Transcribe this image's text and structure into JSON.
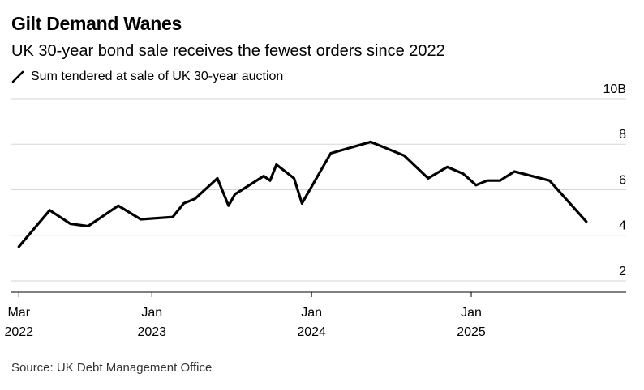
{
  "chart_data": {
    "type": "line",
    "title": "Gilt Demand Wanes",
    "subtitle": "UK 30-year bond sale receives the fewest orders since 2022",
    "legend": [
      {
        "label": "Sum tendered at sale of UK 30-year auction",
        "color": "#000000"
      }
    ],
    "source": "Source: UK Debt Management Office",
    "ylim": [
      1.5,
      10
    ],
    "y_ticks": [
      {
        "value": 10,
        "label": "10B"
      },
      {
        "value": 8,
        "label": "8"
      },
      {
        "value": 6,
        "label": "6"
      },
      {
        "value": 4,
        "label": "4"
      },
      {
        "value": 2,
        "label": "2"
      }
    ],
    "xlim": [
      2022.12,
      2025.97
    ],
    "x_ticks": [
      {
        "value": 2022.167,
        "line1": "Mar",
        "line2": "2022"
      },
      {
        "value": 2023.0,
        "line1": "Jan",
        "line2": "2023"
      },
      {
        "value": 2024.0,
        "line1": "Jan",
        "line2": "2024"
      },
      {
        "value": 2025.0,
        "line1": "Jan",
        "line2": "2025"
      }
    ],
    "series": [
      {
        "name": "Sum tendered at sale of UK 30-year auction",
        "color": "#000000",
        "x": [
          2022.167,
          2022.36,
          2022.49,
          2022.6,
          2022.79,
          2022.93,
          2023.13,
          2023.2,
          2023.27,
          2023.41,
          2023.48,
          2023.52,
          2023.7,
          2023.74,
          2023.78,
          2023.89,
          2023.94,
          2024.12,
          2024.37,
          2024.58,
          2024.73,
          2024.85,
          2024.95,
          2025.03,
          2025.1,
          2025.18,
          2025.27,
          2025.49,
          2025.72
        ],
        "values": [
          3.5,
          5.1,
          4.5,
          4.4,
          5.3,
          4.7,
          4.8,
          5.4,
          5.6,
          6.5,
          5.3,
          5.8,
          6.6,
          6.4,
          7.1,
          6.5,
          5.4,
          7.6,
          8.1,
          7.5,
          6.5,
          7.0,
          6.7,
          6.2,
          6.4,
          6.4,
          6.8,
          6.4,
          4.6
        ]
      }
    ]
  }
}
